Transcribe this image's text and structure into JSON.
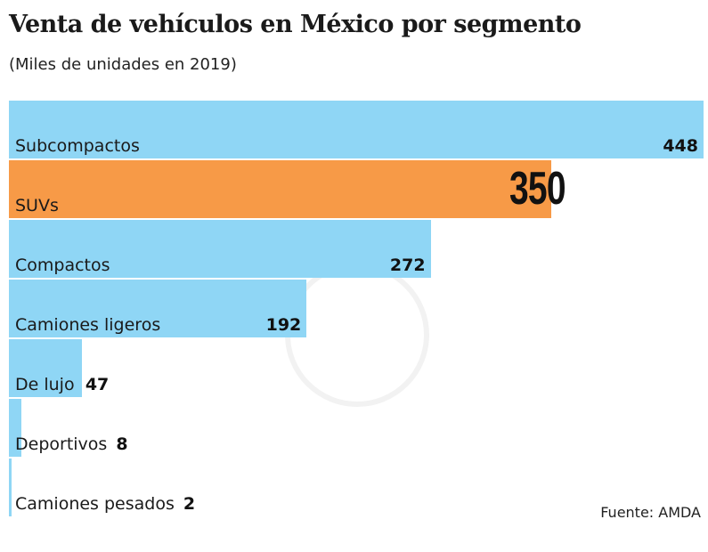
{
  "chart_data": {
    "type": "bar",
    "orientation": "horizontal",
    "title": "Venta de vehículos en México por segmento",
    "subtitle": "(Miles de unidades en 2019)",
    "categories": [
      "Subcompactos",
      "SUVs",
      "Compactos",
      "Camiones ligeros",
      "De lujo",
      "Deportivos",
      "Camiones pesados"
    ],
    "values": [
      448,
      350,
      272,
      192,
      47,
      8,
      2
    ],
    "value_labels": [
      "448",
      "350",
      "272",
      "192",
      "47",
      "8",
      "2"
    ],
    "highlight": "SUVs",
    "colors": {
      "default": "#8fd6f5",
      "highlight": "#f79a47"
    },
    "xlim": [
      0,
      448
    ],
    "grid": false,
    "source": "Fuente: AMDA"
  }
}
